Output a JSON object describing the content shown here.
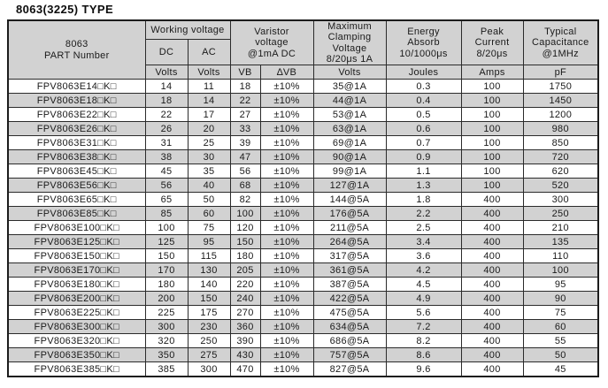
{
  "title": "8063(3225) TYPE",
  "colors": {
    "header_bg": "#d2d2d2",
    "row_alt_bg": "#d2d2d2",
    "border": "#2b2b2b",
    "text": "#1a1a1a"
  },
  "table": {
    "headers": {
      "part_number": "8063\nPART Number",
      "working_voltage": "Working voltage",
      "dc": "DC",
      "ac": "AC",
      "varistor_voltage": "Varistor\nvoltage\n@1mA DC",
      "max_clamping": "Maximum\nClamping\nVoltage\n8/20μs 1A",
      "energy_absorb": "Energy\nAbsorb\n10/1000μs",
      "peak_current": "Peak\nCurrent\n8/20μs",
      "typical_capacitance": "Typical\nCapacitance\n@1MHz"
    },
    "units": {
      "dc": "Volts",
      "ac": "Volts",
      "vb": "VB",
      "dvb": "∆VB",
      "clamp": "Volts",
      "energy": "Joules",
      "peak": "Amps",
      "cap": "pF"
    },
    "columns": [
      "part",
      "dc",
      "ac",
      "vb",
      "dvb",
      "clamp",
      "energy",
      "peak",
      "cap"
    ],
    "rows": [
      [
        "FPV8063E14□K□",
        "14",
        "11",
        "18",
        "±10%",
        "35@1A",
        "0.3",
        "100",
        "1750"
      ],
      [
        "FPV8063E18□K□",
        "18",
        "14",
        "22",
        "±10%",
        "44@1A",
        "0.4",
        "100",
        "1450"
      ],
      [
        "FPV8063E22□K□",
        "22",
        "17",
        "27",
        "±10%",
        "53@1A",
        "0.5",
        "100",
        "1200"
      ],
      [
        "FPV8063E26□K□",
        "26",
        "20",
        "33",
        "±10%",
        "63@1A",
        "0.6",
        "100",
        "980"
      ],
      [
        "FPV8063E31□K□",
        "31",
        "25",
        "39",
        "±10%",
        "69@1A",
        "0.7",
        "100",
        "850"
      ],
      [
        "FPV8063E38□K□",
        "38",
        "30",
        "47",
        "±10%",
        "90@1A",
        "0.9",
        "100",
        "720"
      ],
      [
        "FPV8063E45□K□",
        "45",
        "35",
        "56",
        "±10%",
        "99@1A",
        "1.1",
        "100",
        "620"
      ],
      [
        "FPV8063E56□K□",
        "56",
        "40",
        "68",
        "±10%",
        "127@1A",
        "1.3",
        "100",
        "520"
      ],
      [
        "FPV8063E65□K□",
        "65",
        "50",
        "82",
        "±10%",
        "144@5A",
        "1.8",
        "400",
        "300"
      ],
      [
        "FPV8063E85□K□",
        "85",
        "60",
        "100",
        "±10%",
        "176@5A",
        "2.2",
        "400",
        "250"
      ],
      [
        "FPV8063E100□K□",
        "100",
        "75",
        "120",
        "±10%",
        "211@5A",
        "2.5",
        "400",
        "210"
      ],
      [
        "FPV8063E125□K□",
        "125",
        "95",
        "150",
        "±10%",
        "264@5A",
        "3.4",
        "400",
        "135"
      ],
      [
        "FPV8063E150□K□",
        "150",
        "115",
        "180",
        "±10%",
        "317@5A",
        "3.6",
        "400",
        "110"
      ],
      [
        "FPV8063E170□K□",
        "170",
        "130",
        "205",
        "±10%",
        "361@5A",
        "4.2",
        "400",
        "100"
      ],
      [
        "FPV8063E180□K□",
        "180",
        "140",
        "220",
        "±10%",
        "387@5A",
        "4.5",
        "400",
        "95"
      ],
      [
        "FPV8063E200□K□",
        "200",
        "150",
        "240",
        "±10%",
        "422@5A",
        "4.9",
        "400",
        "90"
      ],
      [
        "FPV8063E225□K□",
        "225",
        "175",
        "270",
        "±10%",
        "475@5A",
        "5.6",
        "400",
        "75"
      ],
      [
        "FPV8063E300□K□",
        "300",
        "230",
        "360",
        "±10%",
        "634@5A",
        "7.2",
        "400",
        "60"
      ],
      [
        "FPV8063E320□K□",
        "320",
        "250",
        "390",
        "±10%",
        "686@5A",
        "8.2",
        "400",
        "55"
      ],
      [
        "FPV8063E350□K□",
        "350",
        "275",
        "430",
        "±10%",
        "757@5A",
        "8.6",
        "400",
        "50"
      ],
      [
        "FPV8063E385□K□",
        "385",
        "300",
        "470",
        "±10%",
        "827@5A",
        "9.6",
        "400",
        "45"
      ]
    ]
  }
}
